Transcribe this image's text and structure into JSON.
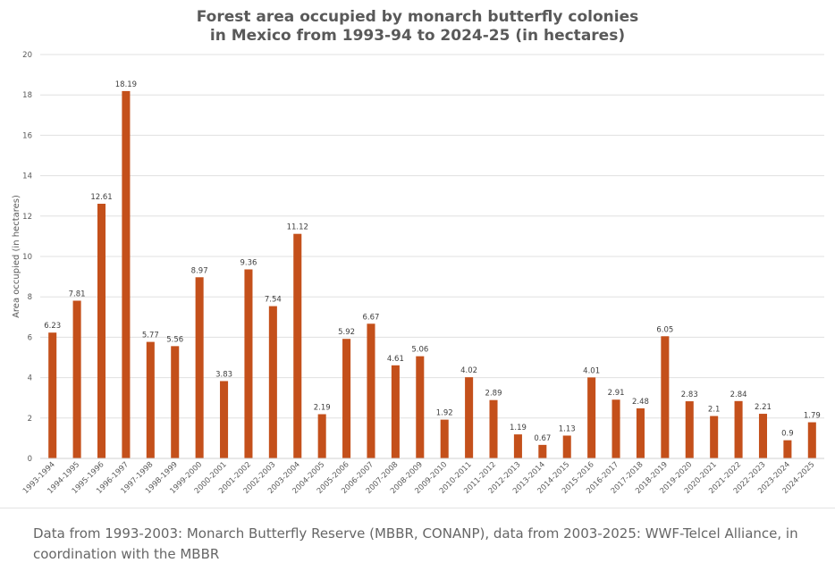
{
  "colors": {
    "bar": "#c4501b",
    "grid": "#e0e0e0",
    "text": "#595959"
  },
  "chart_data": {
    "type": "bar",
    "title": "Forest area occupied by monarch butterfly colonies in Mexico from 1993-94 to 2024-25 (in hectares)",
    "title_lines": [
      "Forest area occupied by monarch butterfly colonies",
      "in Mexico from 1993-94 to 2024-25 (in hectares)"
    ],
    "xlabel": "",
    "ylabel": "Area occupied (in hectares)",
    "ylim": [
      0,
      20
    ],
    "yticks": [
      0,
      2,
      4,
      6,
      8,
      10,
      12,
      14,
      16,
      18,
      20
    ],
    "grid": true,
    "legend": "none",
    "categories": [
      "1993-1994",
      "1994-1995",
      "1995-1996",
      "1996-1997",
      "1997-1998",
      "1998-1999",
      "1999-2000",
      "2000-2001",
      "2001-2002",
      "2002-2003",
      "2003-2004",
      "2004-2005",
      "2005-2006",
      "2006-2007",
      "2007-2008",
      "2008-2009",
      "2009-2010",
      "2010-2011",
      "2011-2012",
      "2012-2013",
      "2013-2014",
      "2014-2015",
      "2015-2016",
      "2016-2017",
      "2017-2018",
      "2018-2019",
      "2019-2020",
      "2020-2021",
      "2021-2022",
      "2022-2023",
      "2023-2024",
      "2024-2025"
    ],
    "values": [
      6.23,
      7.81,
      12.61,
      18.19,
      5.77,
      5.56,
      8.97,
      3.83,
      9.36,
      7.54,
      11.12,
      2.19,
      5.92,
      6.67,
      4.61,
      5.06,
      1.92,
      4.02,
      2.89,
      1.19,
      0.67,
      1.13,
      4.01,
      2.91,
      2.48,
      6.05,
      2.83,
      2.1,
      2.84,
      2.21,
      0.9,
      1.79
    ]
  },
  "footnote": "Data from 1993-2003: Monarch Butterfly Reserve (MBBR, CONANP), data from 2003-2025: WWF-Telcel Alliance, in coordination with the MBBR"
}
